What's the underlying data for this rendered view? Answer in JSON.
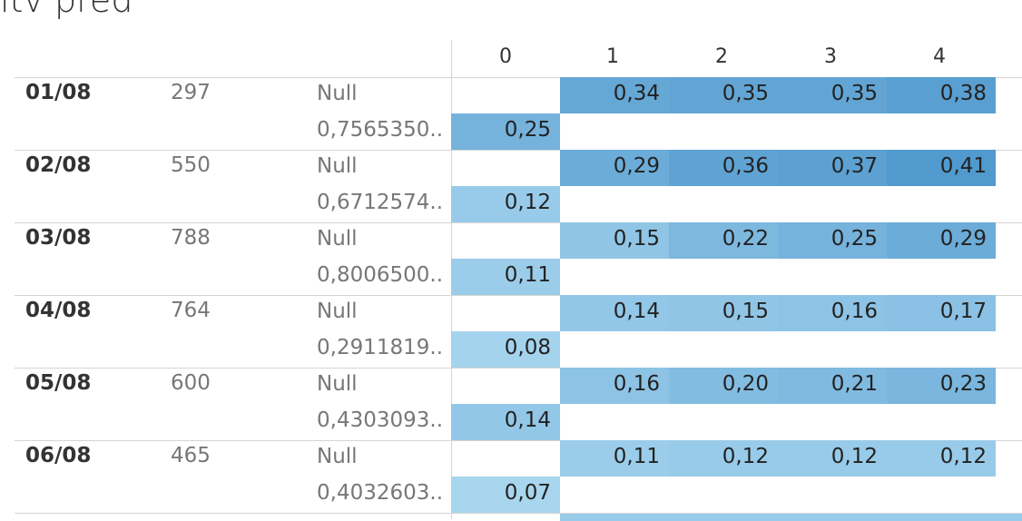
{
  "title": "ltv pred",
  "colors": {
    "c07": "#a8d6ee",
    "c08": "#a4d3ed",
    "c11": "#9bcdea",
    "c12": "#98cbe9",
    "c14": "#93c7e7",
    "c15": "#90c5e6",
    "c16": "#8dc3e5",
    "c17": "#8ac1e4",
    "c20": "#83bce1",
    "c21": "#80bae0",
    "c22": "#7db8df",
    "c23": "#7ab6de",
    "c25": "#75b2dc",
    "c29": "#6cacd8",
    "c34": "#65a7d5",
    "c35": "#62a5d4",
    "c36": "#5fa3d3",
    "c37": "#5ca1d2",
    "c38": "#599fd1",
    "c41": "#519ace"
  },
  "chart_data": {
    "type": "heatmap",
    "title": "ltv pred",
    "columns": [
      "0",
      "1",
      "2",
      "3",
      "4"
    ],
    "rows": [
      {
        "date": "01/08",
        "count": "297",
        "sub": [
          {
            "label": "Null",
            "values": [
              "",
              "0,34",
              "0,35",
              "0,35",
              "0,38"
            ]
          },
          {
            "label": "0,7565350..",
            "values": [
              "0,25",
              "",
              "",
              "",
              ""
            ]
          }
        ]
      },
      {
        "date": "02/08",
        "count": "550",
        "sub": [
          {
            "label": "Null",
            "values": [
              "",
              "0,29",
              "0,36",
              "0,37",
              "0,41"
            ]
          },
          {
            "label": "0,6712574..",
            "values": [
              "0,12",
              "",
              "",
              "",
              ""
            ]
          }
        ]
      },
      {
        "date": "03/08",
        "count": "788",
        "sub": [
          {
            "label": "Null",
            "values": [
              "",
              "0,15",
              "0,22",
              "0,25",
              "0,29"
            ]
          },
          {
            "label": "0,8006500..",
            "values": [
              "0,11",
              "",
              "",
              "",
              ""
            ]
          }
        ]
      },
      {
        "date": "04/08",
        "count": "764",
        "sub": [
          {
            "label": "Null",
            "values": [
              "",
              "0,14",
              "0,15",
              "0,16",
              "0,17"
            ]
          },
          {
            "label": "0,2911819..",
            "values": [
              "0,08",
              "",
              "",
              "",
              ""
            ]
          }
        ]
      },
      {
        "date": "05/08",
        "count": "600",
        "sub": [
          {
            "label": "Null",
            "values": [
              "",
              "0,16",
              "0,20",
              "0,21",
              "0,23"
            ]
          },
          {
            "label": "0,4303093..",
            "values": [
              "0,14",
              "",
              "",
              "",
              ""
            ]
          }
        ]
      },
      {
        "date": "06/08",
        "count": "465",
        "sub": [
          {
            "label": "Null",
            "values": [
              "",
              "0,11",
              "0,12",
              "0,12",
              "0,12"
            ]
          },
          {
            "label": "0,4032603..",
            "values": [
              "0,07",
              "",
              "",
              "",
              ""
            ]
          }
        ]
      }
    ]
  }
}
